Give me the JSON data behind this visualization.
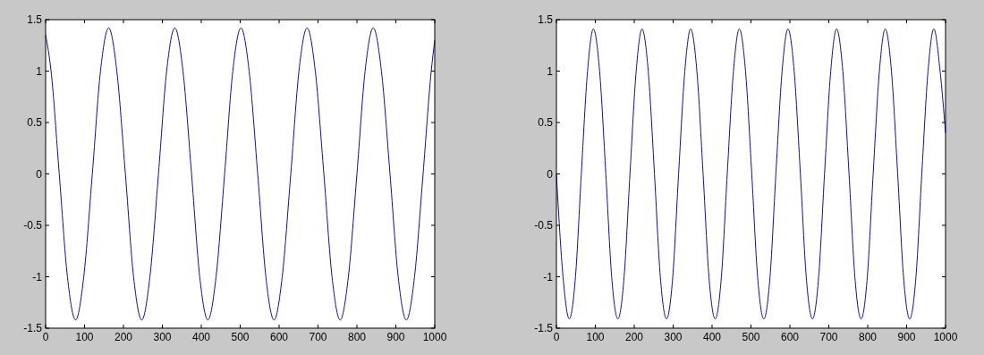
{
  "chart_data": [
    {
      "type": "line",
      "color": "#1010a0",
      "xlim": [
        0,
        1000
      ],
      "ylim": [
        -1.5,
        1.5
      ],
      "xticks": [
        0,
        100,
        200,
        300,
        400,
        500,
        600,
        700,
        800,
        900,
        1000
      ],
      "yticks": [
        -1.5,
        -1,
        -0.5,
        0,
        0.5,
        1,
        1.5
      ],
      "x": [
        0,
        14,
        35,
        56,
        77,
        98,
        120,
        141,
        162,
        183,
        205,
        226,
        247,
        268,
        290,
        311,
        332,
        353,
        375,
        396,
        417,
        438,
        460,
        481,
        502,
        523,
        545,
        566,
        587,
        608,
        630,
        651,
        672,
        693,
        715,
        736,
        757,
        778,
        800,
        821,
        842,
        863,
        885,
        906,
        927,
        948,
        970,
        991,
        1000
      ],
      "values": [
        1.35,
        1.0,
        0,
        -1.0,
        -1.42,
        -1.0,
        0,
        1.0,
        1.42,
        1.0,
        0,
        -1.0,
        -1.42,
        -1.0,
        0,
        1.0,
        1.42,
        1.0,
        0,
        -1.0,
        -1.42,
        -1.0,
        0,
        1.0,
        1.42,
        1.0,
        0,
        -1.0,
        -1.42,
        -1.0,
        0,
        1.0,
        1.42,
        1.0,
        0,
        -1.0,
        -1.42,
        -1.0,
        0,
        1.0,
        1.42,
        1.0,
        0,
        -1.0,
        -1.42,
        -1.0,
        0,
        1.0,
        1.3
      ]
    },
    {
      "type": "line",
      "color": "#1010a0",
      "xlim": [
        0,
        1000
      ],
      "ylim": [
        -1.5,
        1.5
      ],
      "xticks": [
        0,
        100,
        200,
        300,
        400,
        500,
        600,
        700,
        800,
        900,
        1000
      ],
      "yticks": [
        -1.5,
        -1,
        -0.5,
        0,
        0.5,
        1,
        1.5
      ],
      "x": [
        0,
        17,
        33,
        49,
        64,
        80,
        95,
        111,
        127,
        142,
        158,
        174,
        189,
        205,
        220,
        236,
        252,
        267,
        283,
        299,
        314,
        330,
        345,
        361,
        377,
        392,
        408,
        424,
        439,
        455,
        470,
        486,
        502,
        517,
        533,
        549,
        564,
        580,
        595,
        611,
        627,
        642,
        658,
        674,
        689,
        705,
        720,
        736,
        752,
        767,
        783,
        799,
        814,
        830,
        845,
        861,
        877,
        892,
        908,
        924,
        939,
        955,
        970,
        986,
        1000
      ],
      "values": [
        0,
        -1.0,
        -1.41,
        -1.0,
        0,
        1.0,
        1.41,
        1.0,
        0,
        -1.0,
        -1.41,
        -1.0,
        0,
        1.0,
        1.41,
        1.0,
        0,
        -1.0,
        -1.41,
        -1.0,
        0,
        1.0,
        1.41,
        1.0,
        0,
        -1.0,
        -1.41,
        -1.0,
        0,
        1.0,
        1.41,
        1.0,
        0,
        -1.0,
        -1.41,
        -1.0,
        0,
        1.0,
        1.41,
        1.0,
        0,
        -1.0,
        -1.41,
        -1.0,
        0,
        1.0,
        1.41,
        1.0,
        0,
        -1.0,
        -1.41,
        -1.0,
        0,
        1.0,
        1.41,
        1.0,
        0,
        -1.0,
        -1.41,
        -1.0,
        0,
        1.0,
        1.41,
        1.0,
        0.4
      ]
    }
  ]
}
